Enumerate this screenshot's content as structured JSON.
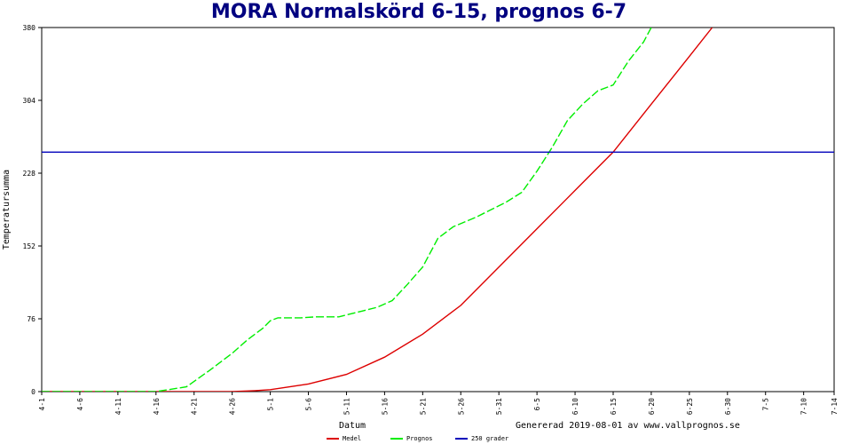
{
  "chart_data": {
    "type": "line",
    "title": "MORA Normalskörd 6-15, prognos 6-7",
    "xlabel": "Datum",
    "ylabel": "Temperatursumma",
    "ylim": [
      0,
      380
    ],
    "yticks": [
      0,
      76,
      152,
      228,
      304,
      380
    ],
    "x_start_date": "4-1",
    "x_tick_labels": [
      "4-1",
      "4-6",
      "4-11",
      "4-16",
      "4-21",
      "4-26",
      "5-1",
      "5-6",
      "5-11",
      "5-16",
      "5-21",
      "5-26",
      "5-31",
      "6-5",
      "6-10",
      "6-15",
      "6-20",
      "6-25",
      "6-30",
      "7-5",
      "7-10",
      "7-14"
    ],
    "grid": false,
    "legend_position": "bottom",
    "series": [
      {
        "name": "Medel",
        "color": "#dd0000",
        "style": "solid",
        "points": [
          [
            "4-1",
            0
          ],
          [
            "4-16",
            0
          ],
          [
            "4-26",
            0
          ],
          [
            "4-29",
            1
          ],
          [
            "5-1",
            2
          ],
          [
            "5-6",
            8
          ],
          [
            "5-11",
            18
          ],
          [
            "5-16",
            36
          ],
          [
            "5-21",
            60
          ],
          [
            "5-26",
            90
          ],
          [
            "5-31",
            130
          ],
          [
            "6-5",
            170
          ],
          [
            "6-10",
            210
          ],
          [
            "6-15",
            250
          ],
          [
            "6-20",
            300
          ],
          [
            "6-25",
            350
          ],
          [
            "6-28",
            380
          ]
        ]
      },
      {
        "name": "Prognos",
        "color": "#00ee00",
        "style": "dashed",
        "points": [
          [
            "4-1",
            0
          ],
          [
            "4-16",
            0
          ],
          [
            "4-20",
            5
          ],
          [
            "4-23",
            22
          ],
          [
            "4-26",
            40
          ],
          [
            "4-28",
            54
          ],
          [
            "4-30",
            66
          ],
          [
            "5-1",
            74
          ],
          [
            "5-2",
            77
          ],
          [
            "5-5",
            77
          ],
          [
            "5-7",
            78
          ],
          [
            "5-10",
            78
          ],
          [
            "5-13",
            84
          ],
          [
            "5-15",
            88
          ],
          [
            "5-17",
            95
          ],
          [
            "5-19",
            112
          ],
          [
            "5-21",
            130
          ],
          [
            "5-23",
            160
          ],
          [
            "5-25",
            172
          ],
          [
            "5-28",
            182
          ],
          [
            "5-30",
            190
          ],
          [
            "6-1",
            198
          ],
          [
            "6-3",
            208
          ],
          [
            "6-5",
            230
          ],
          [
            "6-7",
            255
          ],
          [
            "6-9",
            283
          ],
          [
            "6-11",
            300
          ],
          [
            "6-13",
            314
          ],
          [
            "6-15",
            320
          ],
          [
            "6-17",
            345
          ],
          [
            "6-19",
            365
          ],
          [
            "6-20",
            380
          ]
        ]
      },
      {
        "name": "250 grader",
        "color": "#0000bb",
        "style": "solid",
        "points": [
          [
            "4-1",
            250
          ],
          [
            "7-14",
            250
          ]
        ]
      }
    ]
  },
  "footer": {
    "generated": "Genererad 2019-08-01 av www.vallprognos.se"
  }
}
